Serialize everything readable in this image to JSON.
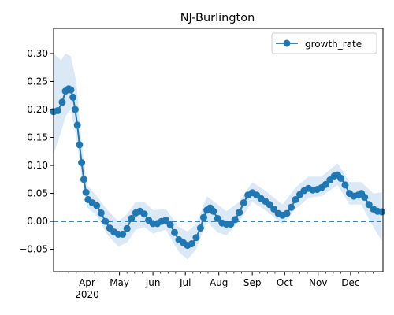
{
  "chart_data": {
    "type": "line",
    "title": "NJ-Burlington",
    "xlabel": "",
    "ylabel": "",
    "x_range": [
      "2020-03-01",
      "2020-12-31"
    ],
    "ylim": [
      -0.09,
      0.345
    ],
    "y_ticks": [
      -0.05,
      0.0,
      0.05,
      0.1,
      0.15,
      0.2,
      0.25,
      0.3
    ],
    "y_tick_labels": [
      "−0.05",
      "0.00",
      "0.05",
      "0.10",
      "0.15",
      "0.20",
      "0.25",
      "0.30"
    ],
    "x_ticks": [
      {
        "date": "2020-04-01",
        "label": "Apr",
        "sublabel": "2020"
      },
      {
        "date": "2020-05-01",
        "label": "May",
        "sublabel": ""
      },
      {
        "date": "2020-06-01",
        "label": "Jun",
        "sublabel": ""
      },
      {
        "date": "2020-07-01",
        "label": "Jul",
        "sublabel": ""
      },
      {
        "date": "2020-08-01",
        "label": "Aug",
        "sublabel": ""
      },
      {
        "date": "2020-09-01",
        "label": "Sep",
        "sublabel": ""
      },
      {
        "date": "2020-10-01",
        "label": "Oct",
        "sublabel": ""
      },
      {
        "date": "2020-11-01",
        "label": "Nov",
        "sublabel": ""
      },
      {
        "date": "2020-12-01",
        "label": "Dec",
        "sublabel": ""
      }
    ],
    "reference_line": {
      "y": 0.0,
      "style": "dashed",
      "color": "#1f77b4"
    },
    "legend": {
      "position": "top-right",
      "entries": [
        "growth_rate"
      ]
    },
    "grid": false,
    "series": [
      {
        "name": "growth_rate",
        "color": "#1f77b4",
        "band_color": "#dbe8f5",
        "marker": "circle",
        "points": [
          [
            "2020-03-01",
            0.196
          ],
          [
            "2020-03-05",
            0.198
          ],
          [
            "2020-03-09",
            0.213
          ],
          [
            "2020-03-12",
            0.233
          ],
          [
            "2020-03-15",
            0.237
          ],
          [
            "2020-03-17",
            0.235
          ],
          [
            "2020-03-19",
            0.222
          ],
          [
            "2020-03-21",
            0.2
          ],
          [
            "2020-03-23",
            0.172
          ],
          [
            "2020-03-25",
            0.137
          ],
          [
            "2020-03-27",
            0.105
          ],
          [
            "2020-03-29",
            0.075
          ],
          [
            "2020-03-31",
            0.052
          ],
          [
            "2020-04-02",
            0.039
          ],
          [
            "2020-04-06",
            0.033
          ],
          [
            "2020-04-10",
            0.028
          ],
          [
            "2020-04-14",
            0.015
          ],
          [
            "2020-04-18",
            0.0
          ],
          [
            "2020-04-22",
            -0.012
          ],
          [
            "2020-04-26",
            -0.019
          ],
          [
            "2020-04-30",
            -0.023
          ],
          [
            "2020-05-04",
            -0.023
          ],
          [
            "2020-05-08",
            -0.013
          ],
          [
            "2020-05-12",
            0.005
          ],
          [
            "2020-05-16",
            0.015
          ],
          [
            "2020-05-20",
            0.018
          ],
          [
            "2020-05-24",
            0.013
          ],
          [
            "2020-05-28",
            0.002
          ],
          [
            "2020-06-01",
            -0.004
          ],
          [
            "2020-06-05",
            -0.004
          ],
          [
            "2020-06-09",
            0.0
          ],
          [
            "2020-06-13",
            0.002
          ],
          [
            "2020-06-17",
            -0.006
          ],
          [
            "2020-06-21",
            -0.02
          ],
          [
            "2020-06-25",
            -0.033
          ],
          [
            "2020-06-29",
            -0.038
          ],
          [
            "2020-07-03",
            -0.043
          ],
          [
            "2020-07-07",
            -0.04
          ],
          [
            "2020-07-11",
            -0.029
          ],
          [
            "2020-07-15",
            -0.012
          ],
          [
            "2020-07-18",
            0.007
          ],
          [
            "2020-07-21",
            0.02
          ],
          [
            "2020-07-24",
            0.024
          ],
          [
            "2020-07-27",
            0.018
          ],
          [
            "2020-07-31",
            0.005
          ],
          [
            "2020-08-04",
            -0.003
          ],
          [
            "2020-08-08",
            -0.005
          ],
          [
            "2020-08-12",
            -0.005
          ],
          [
            "2020-08-16",
            0.003
          ],
          [
            "2020-08-20",
            0.016
          ],
          [
            "2020-08-24",
            0.033
          ],
          [
            "2020-08-28",
            0.047
          ],
          [
            "2020-09-01",
            0.051
          ],
          [
            "2020-09-05",
            0.047
          ],
          [
            "2020-09-09",
            0.041
          ],
          [
            "2020-09-13",
            0.036
          ],
          [
            "2020-09-17",
            0.03
          ],
          [
            "2020-09-21",
            0.022
          ],
          [
            "2020-09-25",
            0.014
          ],
          [
            "2020-09-29",
            0.011
          ],
          [
            "2020-10-03",
            0.014
          ],
          [
            "2020-10-07",
            0.025
          ],
          [
            "2020-10-11",
            0.039
          ],
          [
            "2020-10-15",
            0.048
          ],
          [
            "2020-10-19",
            0.055
          ],
          [
            "2020-10-23",
            0.059
          ],
          [
            "2020-10-27",
            0.056
          ],
          [
            "2020-10-31",
            0.057
          ],
          [
            "2020-11-04",
            0.06
          ],
          [
            "2020-11-08",
            0.066
          ],
          [
            "2020-11-12",
            0.074
          ],
          [
            "2020-11-16",
            0.081
          ],
          [
            "2020-11-19",
            0.083
          ],
          [
            "2020-11-22",
            0.077
          ],
          [
            "2020-11-26",
            0.065
          ],
          [
            "2020-11-30",
            0.05
          ],
          [
            "2020-12-04",
            0.045
          ],
          [
            "2020-12-08",
            0.047
          ],
          [
            "2020-12-11",
            0.05
          ],
          [
            "2020-12-14",
            0.043
          ],
          [
            "2020-12-18",
            0.03
          ],
          [
            "2020-12-22",
            0.022
          ],
          [
            "2020-12-26",
            0.018
          ],
          [
            "2020-12-30",
            0.017
          ]
        ],
        "band": [
          [
            "2020-03-01",
            0.12,
            0.3
          ],
          [
            "2020-03-08",
            0.16,
            0.288
          ],
          [
            "2020-03-12",
            0.188,
            0.3
          ],
          [
            "2020-03-17",
            0.2,
            0.295
          ],
          [
            "2020-03-22",
            0.15,
            0.25
          ],
          [
            "2020-03-27",
            0.08,
            0.14
          ],
          [
            "2020-04-01",
            0.025,
            0.065
          ],
          [
            "2020-04-10",
            0.01,
            0.045
          ],
          [
            "2020-04-20",
            -0.025,
            0.02
          ],
          [
            "2020-04-30",
            -0.045,
            0.0
          ],
          [
            "2020-05-08",
            -0.038,
            0.013
          ],
          [
            "2020-05-16",
            -0.015,
            0.035
          ],
          [
            "2020-05-24",
            -0.01,
            0.035
          ],
          [
            "2020-06-01",
            -0.022,
            0.02
          ],
          [
            "2020-06-13",
            -0.015,
            0.022
          ],
          [
            "2020-06-25",
            -0.055,
            -0.01
          ],
          [
            "2020-07-03",
            -0.068,
            -0.018
          ],
          [
            "2020-07-11",
            -0.05,
            -0.005
          ],
          [
            "2020-07-21",
            0.0,
            0.045
          ],
          [
            "2020-07-31",
            -0.02,
            0.03
          ],
          [
            "2020-08-08",
            -0.025,
            0.018
          ],
          [
            "2020-08-20",
            0.0,
            0.035
          ],
          [
            "2020-09-01",
            0.035,
            0.07
          ],
          [
            "2020-09-13",
            0.02,
            0.055
          ],
          [
            "2020-09-29",
            -0.005,
            0.03
          ],
          [
            "2020-10-11",
            0.022,
            0.06
          ],
          [
            "2020-10-23",
            0.042,
            0.08
          ],
          [
            "2020-11-04",
            0.045,
            0.08
          ],
          [
            "2020-11-19",
            0.065,
            0.104
          ],
          [
            "2020-11-30",
            0.03,
            0.07
          ],
          [
            "2020-12-11",
            0.03,
            0.07
          ],
          [
            "2020-12-22",
            -0.01,
            0.05
          ],
          [
            "2020-12-30",
            -0.035,
            0.052
          ]
        ]
      }
    ]
  }
}
